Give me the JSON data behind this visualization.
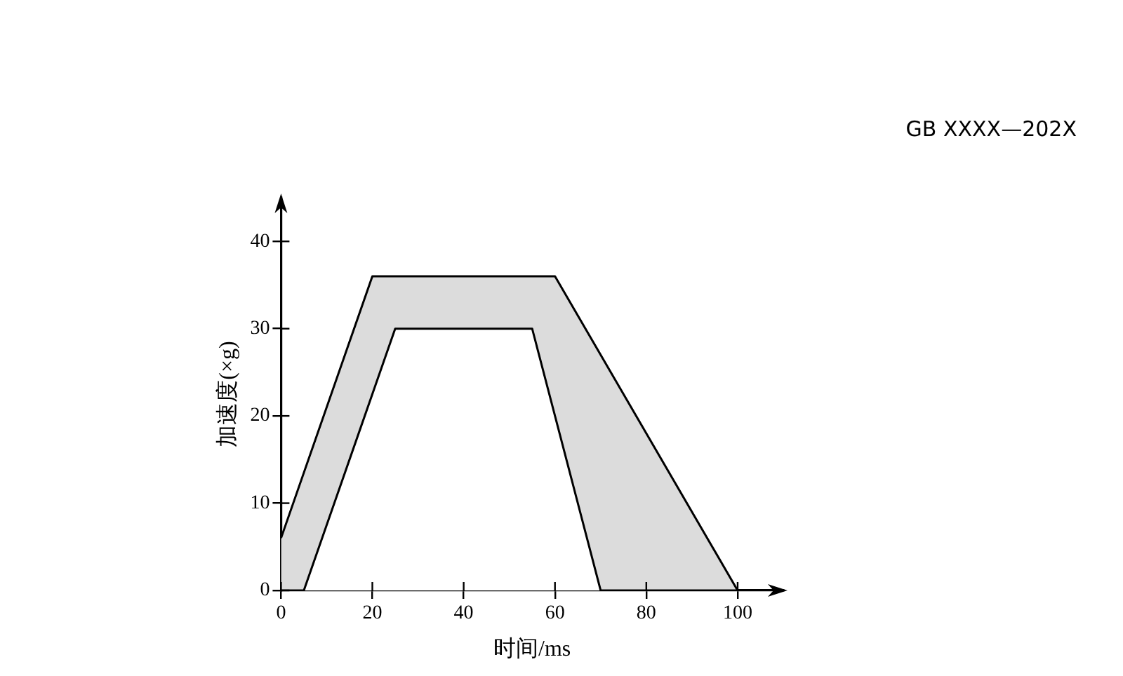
{
  "chart_data": {
    "type": "area",
    "xlabel": "时间/ms",
    "ylabel": "加速度(×g)",
    "annotations": [
      "GB XXXX—202X"
    ],
    "series": [
      {
        "x": [
          0,
          20,
          60,
          100
        ],
        "values": [
          6,
          36,
          36,
          0
        ],
        "color": "#dcdcdc"
      },
      {
        "x": [
          0,
          5,
          25,
          55,
          70,
          100
        ],
        "values": [
          0,
          0,
          30,
          30,
          0,
          0
        ],
        "color": "#ffffff"
      }
    ],
    "xlim": [
      0,
      110
    ],
    "ylim": [
      0,
      45
    ],
    "xticks": [
      0,
      20,
      40,
      60,
      80,
      100
    ],
    "yticks": [
      0,
      10,
      20,
      30,
      40
    ]
  }
}
